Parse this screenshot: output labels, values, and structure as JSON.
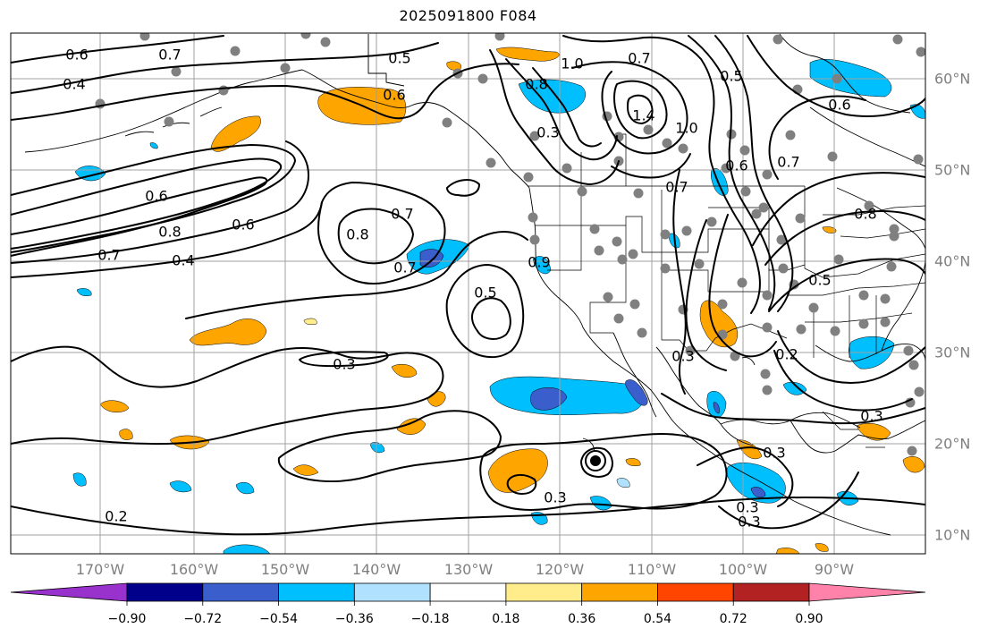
{
  "title": "2025091800 F084",
  "lon_labels": [
    "170°W",
    "160°W",
    "150°W",
    "140°W",
    "130°W",
    "120°W",
    "110°W",
    "100°W",
    "90°W"
  ],
  "lat_labels": [
    "60°N",
    "50°N",
    "40°N",
    "30°N",
    "20°N",
    "10°N"
  ],
  "colorbar": {
    "tick_labels": [
      "−0.90",
      "−0.72",
      "−0.54",
      "−0.36",
      "−0.18",
      "0.18",
      "0.36",
      "0.54",
      "0.72",
      "0.90"
    ],
    "colors": [
      "#9932cc",
      "#00008b",
      "#3a5fcd",
      "#00bfff",
      "#b0e2ff",
      "#ffffff",
      "#ffec8b",
      "#ffa500",
      "#ff4500",
      "#b22222",
      "#ff82ab"
    ]
  },
  "contour_labels": [
    "0.6",
    "0.7",
    "0.4",
    "0.5",
    "0.6",
    "1.0",
    "0.7",
    "0.8",
    "0.3",
    "1.4",
    "1.0",
    "0.5",
    "0.6",
    "0.7",
    "0.6",
    "0.7",
    "0.5",
    "0.8",
    "0.6",
    "0.4",
    "0.7",
    "0.8",
    "0.6",
    "0.7",
    "0.9",
    "0.7",
    "0.8",
    "0.5",
    "0.2",
    "0.3",
    "0.3",
    "0.3",
    "0.3",
    "0.3",
    "0.3",
    "0.2",
    "0.3"
  ],
  "colors": {
    "contour": "#000000",
    "grid": "#a0a0a0",
    "tick_label": "#7f7f7f",
    "station": "#808080",
    "orange": "#ffa500",
    "cyan": "#00bfff",
    "blue": "#3a5fcd"
  }
}
